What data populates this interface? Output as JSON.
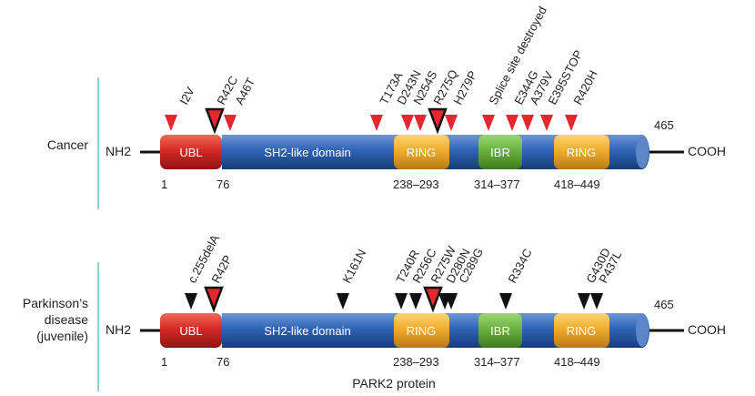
{
  "colors": {
    "ubl": "#d42a26",
    "linker": "#2f64b4",
    "ring": "#f0ad2e",
    "ibr": "#69b23e",
    "cancer_marker": "#e8262f",
    "pd_marker": "#111111",
    "separator": "#8fd6c8",
    "terminal_line": "#111111"
  },
  "cancer": {
    "label": "Cancer",
    "nterm": "NH2",
    "cterm": "COOH",
    "length_label": "465",
    "domains": {
      "ubl": "UBL",
      "sh2": "SH2-like domain",
      "ring1": "RING",
      "ibr": "IBR",
      "ring2": "RING"
    },
    "positions": {
      "start": "1",
      "ubl_end": "76",
      "ring1": "238–293",
      "ibr": "314–377",
      "ring2": "418–449"
    },
    "mutations": [
      {
        "label": "I2V",
        "style": "small"
      },
      {
        "label": "R42C",
        "style": "large"
      },
      {
        "label": "A46T",
        "style": "small"
      },
      {
        "label": "T173A",
        "style": "small"
      },
      {
        "label": "D243N",
        "style": "small"
      },
      {
        "label": "N254S",
        "style": "small"
      },
      {
        "label": "R275Q",
        "style": "large"
      },
      {
        "label": "H279P",
        "style": "small"
      },
      {
        "label": "Splice site destroyed",
        "style": "small"
      },
      {
        "label": "E344G",
        "style": "small"
      },
      {
        "label": "A379V",
        "style": "small"
      },
      {
        "label": "E395STOP",
        "style": "small"
      },
      {
        "label": "R420H",
        "style": "small"
      }
    ]
  },
  "parkinsons": {
    "label_lines": [
      "Parkinson’s",
      "disease",
      "(juvenile)"
    ],
    "nterm": "NH2",
    "cterm": "COOH",
    "length_label": "465",
    "domains": {
      "ubl": "UBL",
      "sh2": "SH2-like domain",
      "ring1": "RING",
      "ibr": "IBR",
      "ring2": "RING"
    },
    "positions": {
      "start": "1",
      "ubl_end": "76",
      "ring1": "238–293",
      "ibr": "314–377",
      "ring2": "418–449"
    },
    "mutations": [
      {
        "label": "",
        "style": "small"
      },
      {
        "label": "c.255delA",
        "style": "small"
      },
      {
        "label": "R42P",
        "style": "large"
      },
      {
        "label": "K161N",
        "style": "small"
      },
      {
        "label": "T240R",
        "style": "small"
      },
      {
        "label": "R256C",
        "style": "small"
      },
      {
        "label": "R275W",
        "style": "large"
      },
      {
        "label": "D280N",
        "style": "small"
      },
      {
        "label": "C289G",
        "style": "small"
      },
      {
        "label": "R334C",
        "style": "small"
      },
      {
        "label": "G430D",
        "style": "small"
      },
      {
        "label": "P437L",
        "style": "small"
      }
    ]
  },
  "caption": "PARK2 protein"
}
